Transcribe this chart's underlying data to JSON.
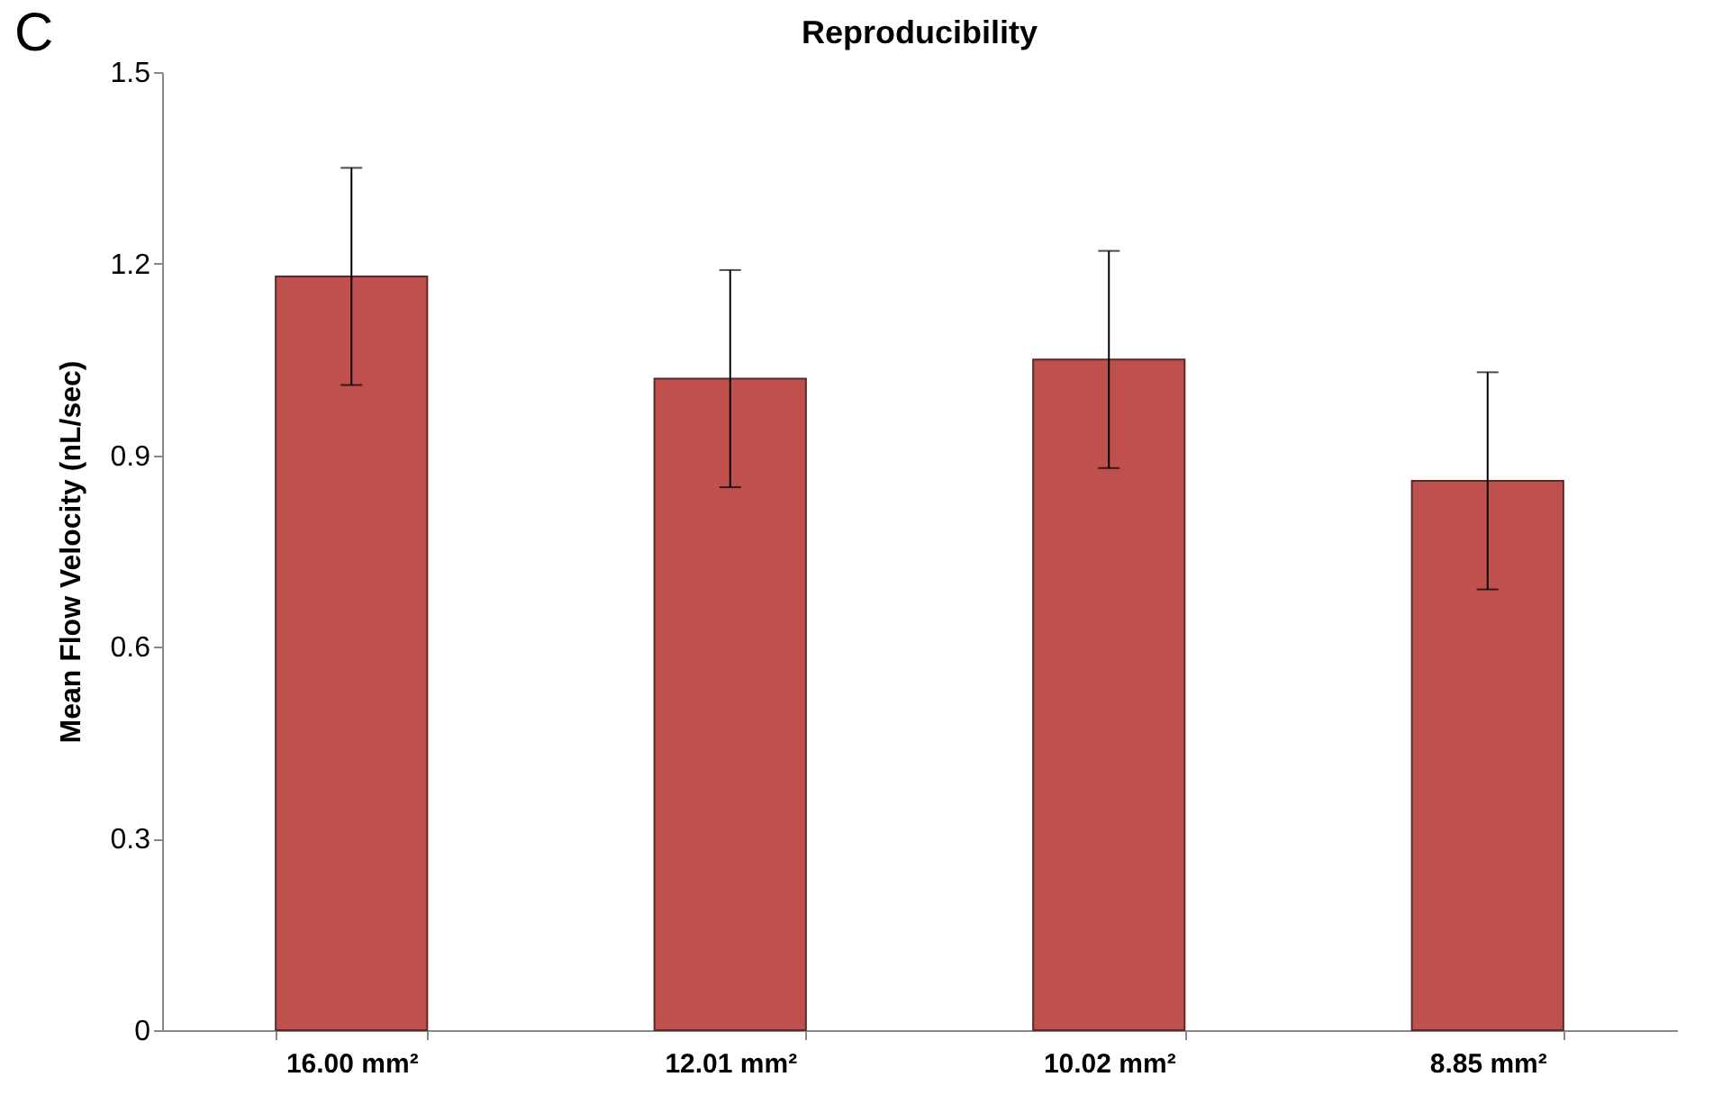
{
  "chart_data": {
    "type": "bar",
    "title": "Reproducibility",
    "ylabel": "Mean Flow Velocity (nL/sec)",
    "categories": [
      "16.00 mm²",
      "12.01 mm²",
      "10.02 mm²",
      "8.85 mm²"
    ],
    "values": [
      1.18,
      1.02,
      1.05,
      0.86
    ],
    "errors": [
      0.17,
      0.17,
      0.17,
      0.17
    ],
    "color": "#c0504d",
    "ylim": [
      0,
      1.5
    ],
    "yticks": [
      0,
      0.3,
      0.6,
      0.9,
      1.2,
      1.5
    ],
    "annotations": [
      "C"
    ],
    "grid": false
  }
}
